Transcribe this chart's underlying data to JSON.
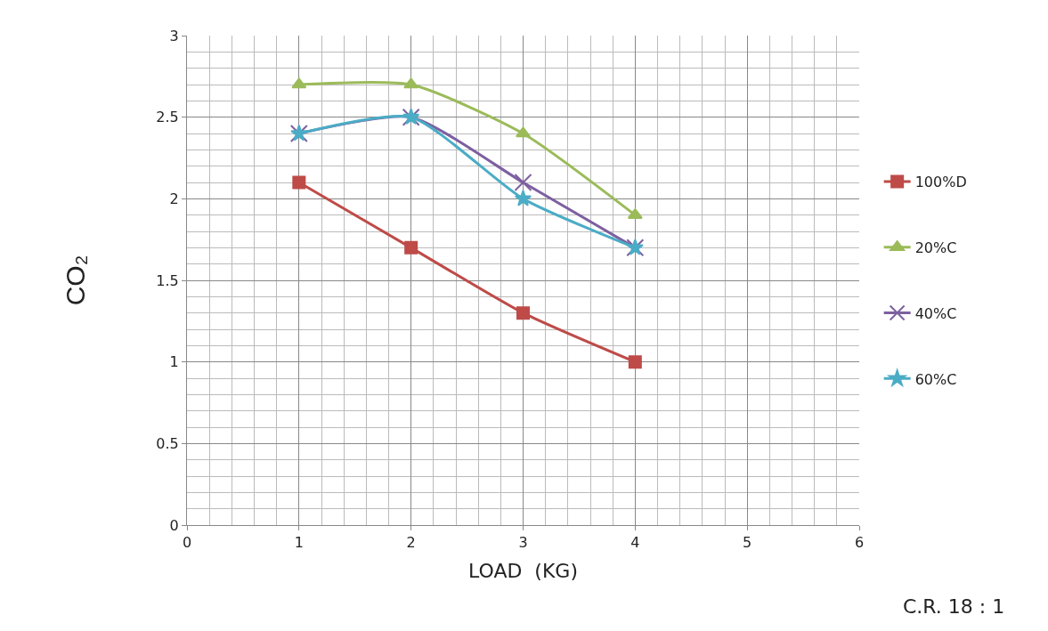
{
  "chart_data": {
    "type": "line",
    "xlabel": "LOAD  (KG)",
    "ylabel": "CO₂",
    "x": [
      1,
      2,
      3,
      4
    ],
    "series": [
      {
        "name": "100%D",
        "color": "#be4b48",
        "marker": "square",
        "values": [
          2.1,
          1.7,
          1.3,
          1.0
        ]
      },
      {
        "name": "20%C",
        "color": "#9bbb59",
        "marker": "triangle",
        "values": [
          2.7,
          2.7,
          2.4,
          1.9
        ]
      },
      {
        "name": "40%C",
        "color": "#7d60a0",
        "marker": "cross",
        "values": [
          2.4,
          2.5,
          2.1,
          1.7
        ]
      },
      {
        "name": "60%C",
        "color": "#4bacc6",
        "marker": "star",
        "values": [
          2.4,
          2.5,
          2.0,
          1.7
        ]
      }
    ],
    "xlim": [
      0,
      6
    ],
    "xticks": [
      0,
      1,
      2,
      3,
      4,
      5,
      6
    ],
    "ylim": [
      0,
      3
    ],
    "yticks": [
      0,
      0.5,
      1,
      1.5,
      2,
      2.5,
      3
    ],
    "grid": true,
    "legend": "right",
    "line_style": "solid",
    "annotations": [
      "C.R. 18 : 1"
    ]
  }
}
